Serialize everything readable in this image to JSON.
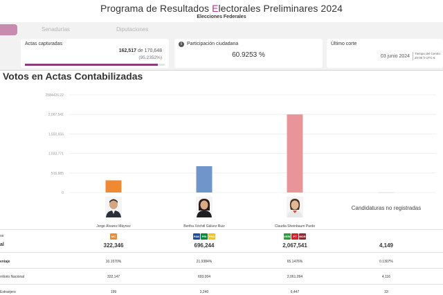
{
  "header": {
    "title_before": "Programa de Resultados ",
    "title_accent": "E",
    "title_after": "lectorales Preliminares 2024",
    "subtitle": "Elecciones Federales"
  },
  "tabs": [
    {
      "label": "Senadurías"
    },
    {
      "label": "Diputaciones"
    }
  ],
  "cards": {
    "actas": {
      "label": "Actas capturadas",
      "captured": "162,517",
      "of_text": "de 170,648",
      "percent": "(95.2352%)",
      "progress_fraction": 0.952352
    },
    "participacion": {
      "info_icon": "info-icon",
      "label": "Participación ciudadana",
      "value": "60.9253 %"
    },
    "corte": {
      "label": "Último corte",
      "date": "03 junio 2024",
      "tz_line1": "Tiempo del Centro",
      "tz_line2": "20:00 h UTC-6"
    }
  },
  "section_title": "Votos en Actas Contabilizadas",
  "chart_data": {
    "type": "bar",
    "categories": [
      "Jorge Álvarez Máynez",
      "Bertha Xóchitl Gálvez Ruiz",
      "Claudia Sheinbaum Pardo",
      "Candidaturas no registradas"
    ],
    "values": [
      322346,
      696244,
      2067541,
      4149
    ],
    "colors": [
      "#f08a32",
      "#6f95cb",
      "#e89499",
      "#cccccc"
    ],
    "ylim": [
      0,
      2584426.22
    ],
    "yticks": [
      0,
      516885,
      1033771,
      1550656,
      2067541,
      2584426.22
    ],
    "ytick_labels": [
      "0",
      "516,885",
      "1,033,771",
      "1,550,656",
      "2,067,541",
      "2584426.22"
    ],
    "grid": true
  },
  "candidates": [
    {
      "name": "Jorge Álvarez Máynez"
    },
    {
      "name": "Bertha Xóchitl Gálvez Ruiz"
    },
    {
      "name": "Claudia Sheinbaum Pardo"
    }
  ],
  "no_registradas": "Candidaturas no registradas",
  "table": {
    "row_labels": {
      "votos": "os",
      "total": "al",
      "porcentaje": "entaje",
      "nacional": "rritorio Nacional",
      "extranjero": "Extranjero"
    },
    "party_logos": [
      [
        {
          "name": "mc-logo",
          "text": "MC",
          "color": "#f08a32"
        }
      ],
      [
        {
          "name": "pan-logo",
          "text": "PAN",
          "color": "#1d4f9b"
        },
        {
          "name": "pri-logo",
          "text": "PRI",
          "color": "#0a8a3d"
        },
        {
          "name": "prd-logo",
          "text": "PRD",
          "color": "#f0c419"
        }
      ],
      [
        {
          "name": "pvem-logo",
          "text": "VERDE",
          "color": "#2e9a3f"
        },
        {
          "name": "pt-logo",
          "text": "PT",
          "color": "#d91e2a"
        },
        {
          "name": "morena-logo",
          "text": "MOR",
          "color": "#8e2832"
        }
      ]
    ],
    "totals": [
      "322,346",
      "696,244",
      "2,067,541",
      "4,149"
    ],
    "percents": [
      "10.1570%",
      "21.9384%",
      "65.1476%",
      "0.1307%"
    ],
    "nacional": [
      "322,147",
      "693,004",
      "2,061,094",
      "4,116"
    ],
    "extranjero": [
      "199",
      "3,240",
      "6,447",
      "33"
    ]
  }
}
